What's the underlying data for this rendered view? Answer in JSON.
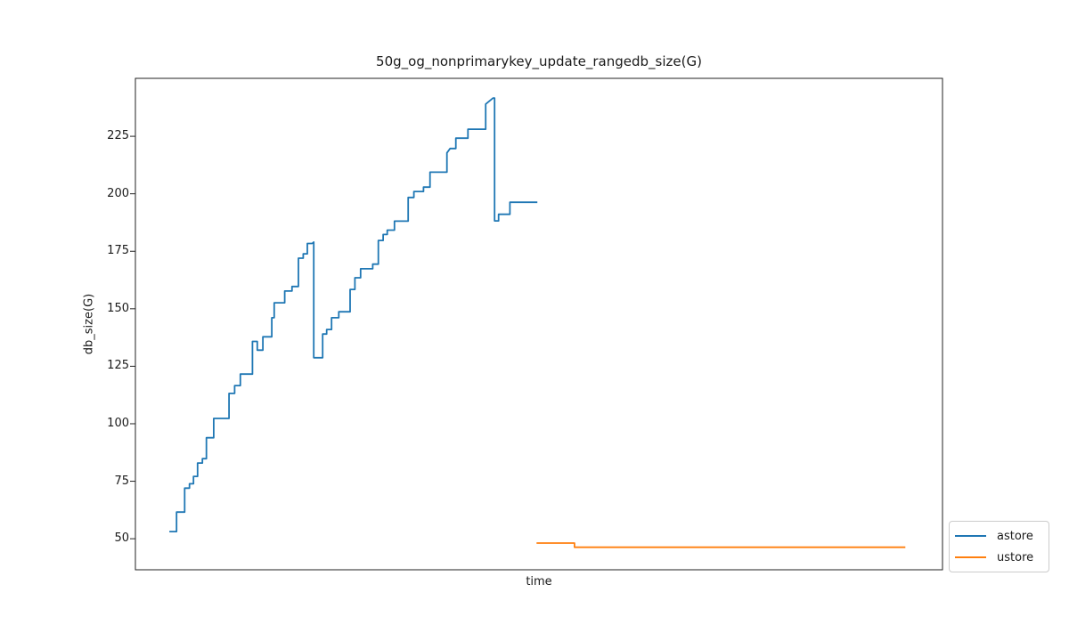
{
  "figure": {
    "background": "#ffffff",
    "text_color": "#1a1a1a",
    "axis_color": "#222222"
  },
  "chart_data": {
    "type": "line",
    "title": "50g_og_nonprimarykey_update_rangedb_size(G)",
    "xlabel": "time",
    "ylabel": "db_size(G)",
    "xlim": [
      0,
      1
    ],
    "ylim": [
      36.5,
      250.2
    ],
    "yticks": [
      50,
      75,
      100,
      125,
      150,
      175,
      200,
      225
    ],
    "xticks": [],
    "grid": false,
    "legend": {
      "position": "outside-lower-right",
      "entries": [
        "astore",
        "ustore"
      ]
    },
    "series": [
      {
        "name": "astore",
        "color": "#1f77b4",
        "points": [
          [
            0.042,
            53.1
          ],
          [
            0.051,
            53.1
          ],
          [
            0.051,
            61.6
          ],
          [
            0.061,
            61.6
          ],
          [
            0.061,
            72.0
          ],
          [
            0.067,
            72.0
          ],
          [
            0.067,
            73.9
          ],
          [
            0.072,
            73.9
          ],
          [
            0.072,
            77.1
          ],
          [
            0.077,
            77.1
          ],
          [
            0.077,
            82.9
          ],
          [
            0.083,
            82.9
          ],
          [
            0.083,
            84.8
          ],
          [
            0.088,
            84.8
          ],
          [
            0.088,
            93.9
          ],
          [
            0.097,
            93.9
          ],
          [
            0.097,
            102.3
          ],
          [
            0.116,
            102.3
          ],
          [
            0.116,
            113.2
          ],
          [
            0.123,
            113.2
          ],
          [
            0.123,
            116.6
          ],
          [
            0.13,
            116.6
          ],
          [
            0.13,
            121.6
          ],
          [
            0.145,
            121.6
          ],
          [
            0.145,
            135.8
          ],
          [
            0.151,
            135.8
          ],
          [
            0.151,
            132.0
          ],
          [
            0.158,
            132.0
          ],
          [
            0.158,
            137.8
          ],
          [
            0.169,
            137.8
          ],
          [
            0.169,
            146.1
          ],
          [
            0.172,
            146.1
          ],
          [
            0.172,
            152.6
          ],
          [
            0.185,
            152.6
          ],
          [
            0.185,
            157.7
          ],
          [
            0.194,
            157.7
          ],
          [
            0.194,
            159.7
          ],
          [
            0.202,
            159.7
          ],
          [
            0.202,
            172.0
          ],
          [
            0.208,
            172.0
          ],
          [
            0.208,
            173.9
          ],
          [
            0.213,
            173.9
          ],
          [
            0.213,
            178.4
          ],
          [
            0.219,
            178.4
          ],
          [
            0.221,
            179.0
          ],
          [
            0.221,
            128.7
          ],
          [
            0.232,
            128.7
          ],
          [
            0.232,
            139.0
          ],
          [
            0.237,
            139.0
          ],
          [
            0.237,
            141.0
          ],
          [
            0.243,
            141.0
          ],
          [
            0.243,
            146.1
          ],
          [
            0.252,
            146.1
          ],
          [
            0.252,
            148.7
          ],
          [
            0.266,
            148.7
          ],
          [
            0.266,
            158.4
          ],
          [
            0.272,
            158.4
          ],
          [
            0.272,
            163.5
          ],
          [
            0.279,
            163.5
          ],
          [
            0.279,
            167.4
          ],
          [
            0.294,
            167.4
          ],
          [
            0.294,
            169.4
          ],
          [
            0.301,
            169.4
          ],
          [
            0.301,
            179.7
          ],
          [
            0.307,
            179.7
          ],
          [
            0.307,
            182.3
          ],
          [
            0.312,
            182.3
          ],
          [
            0.312,
            184.2
          ],
          [
            0.321,
            184.2
          ],
          [
            0.321,
            188.1
          ],
          [
            0.338,
            188.1
          ],
          [
            0.338,
            198.4
          ],
          [
            0.345,
            198.4
          ],
          [
            0.345,
            201.0
          ],
          [
            0.357,
            201.0
          ],
          [
            0.357,
            202.9
          ],
          [
            0.365,
            202.9
          ],
          [
            0.365,
            209.4
          ],
          [
            0.386,
            209.4
          ],
          [
            0.386,
            217.8
          ],
          [
            0.39,
            219.7
          ],
          [
            0.397,
            219.7
          ],
          [
            0.397,
            224.2
          ],
          [
            0.412,
            224.2
          ],
          [
            0.412,
            228.1
          ],
          [
            0.434,
            228.1
          ],
          [
            0.434,
            239.0
          ],
          [
            0.443,
            241.6
          ],
          [
            0.445,
            241.6
          ],
          [
            0.445,
            188.2
          ],
          [
            0.45,
            188.2
          ],
          [
            0.45,
            191.1
          ],
          [
            0.464,
            191.1
          ],
          [
            0.464,
            196.3
          ],
          [
            0.498,
            196.3
          ]
        ]
      },
      {
        "name": "ustore",
        "color": "#ff7f0e",
        "points": [
          [
            0.497,
            48.1
          ],
          [
            0.544,
            48.1
          ],
          [
            0.544,
            46.3
          ],
          [
            0.954,
            46.3
          ]
        ]
      }
    ]
  }
}
